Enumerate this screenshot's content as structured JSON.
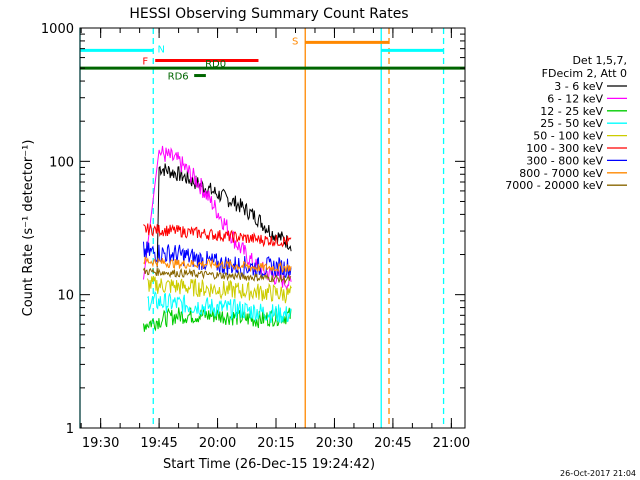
{
  "chart_data": {
    "type": "line",
    "title": "HESSI Observing Summary Count Rates",
    "ylabel": "Count Rate (s⁻¹ detector⁻¹)",
    "xlabel": "Start Time (26-Dec-15 19:24:42)",
    "yscale": "log",
    "ylim": [
      1,
      1000
    ],
    "xlim": [
      "19:24:42",
      "21:03:30"
    ],
    "y_ticks": [
      "1",
      "10",
      "100",
      "1000"
    ],
    "x_ticks": [
      "19:30",
      "19:45",
      "20:00",
      "20:15",
      "20:30",
      "20:45",
      "21:00"
    ],
    "x_tick_minutes": [
      5.3,
      20.3,
      35.3,
      50.3,
      65.3,
      80.3,
      95.3
    ],
    "legend_title": [
      "Det 1,5,7,",
      "FDecim 2, Att 0"
    ],
    "legend_position": "right",
    "footer": "26-Oct-2017 21:04",
    "series": [
      {
        "name": "3 - 6 keV",
        "color": "#000000",
        "x": [
          "19:45:00",
          "19:50:00",
          "19:55:00",
          "20:00:00",
          "20:05:00",
          "20:10:00",
          "20:14:00",
          "20:19:00"
        ],
        "values": [
          90,
          80,
          68,
          57,
          48,
          38,
          29,
          24
        ],
        "start_value": 16,
        "start_time": "19:44:30"
      },
      {
        "name": "6 - 12 keV",
        "color": "#ff00ff",
        "x": [
          "19:45:00",
          "19:50:00",
          "19:55:00",
          "20:00:00",
          "20:05:00",
          "20:10:00",
          "20:14:00",
          "20:19:00"
        ],
        "values": [
          118,
          100,
          70,
          42,
          24,
          16,
          14,
          12
        ],
        "start_value": 13,
        "start_time": "19:41:00"
      },
      {
        "name": "12 - 25 keV",
        "color": "#00cc00",
        "x": [
          "19:41:00",
          "19:50:00",
          "20:00:00",
          "20:10:00",
          "20:19:00"
        ],
        "values": [
          6,
          7,
          7,
          6.5,
          7
        ]
      },
      {
        "name": "25 - 50 keV",
        "color": "#00ffff",
        "x": [
          "19:42:00",
          "19:50:00",
          "20:00:00",
          "20:10:00",
          "20:19:00"
        ],
        "values": [
          9,
          8.5,
          8,
          7.5,
          7
        ]
      },
      {
        "name": "50 - 100 keV",
        "color": "#cccc00",
        "x": [
          "19:42:00",
          "19:50:00",
          "20:00:00",
          "20:10:00",
          "20:19:00"
        ],
        "values": [
          12,
          11.5,
          11,
          10.5,
          10
        ]
      },
      {
        "name": "100 - 300 keV",
        "color": "#ff0000",
        "x": [
          "19:41:00",
          "19:50:00",
          "20:00:00",
          "20:10:00",
          "20:19:00"
        ],
        "values": [
          31,
          30,
          28,
          26,
          25
        ]
      },
      {
        "name": "300 - 800 keV",
        "color": "#0000ff",
        "x": [
          "19:41:00",
          "19:50:00",
          "20:00:00",
          "20:10:00",
          "20:19:00"
        ],
        "values": [
          21,
          20,
          17,
          16,
          16
        ]
      },
      {
        "name": "800 - 7000 keV",
        "color": "#ff8800",
        "x": [
          "19:41:00",
          "19:50:00",
          "20:00:00",
          "20:10:00",
          "20:19:00"
        ],
        "values": [
          18,
          17,
          17,
          16,
          16
        ]
      },
      {
        "name": "7000 - 20000 keV",
        "color": "#886600",
        "x": [
          "19:41:00",
          "19:50:00",
          "20:00:00",
          "20:10:00",
          "20:19:00"
        ],
        "values": [
          15,
          14.5,
          14,
          13.5,
          13
        ]
      }
    ],
    "flag_bars": [
      {
        "label": "N",
        "color": "#00ffff",
        "start": "19:24:42",
        "end": "19:43:30",
        "level": 680
      },
      {
        "label": "",
        "color": "#00ffff",
        "start": "20:42:00",
        "end": "20:58:00",
        "level": 680
      },
      {
        "label": "F",
        "color": "#ff0000",
        "start": "19:44:00",
        "end": "20:10:30",
        "level": 570
      },
      {
        "label": "S",
        "color": "#ff8800",
        "start": "20:22:30",
        "end": "20:44:00",
        "level": 780
      },
      {
        "label": "RD0",
        "color": "#006600",
        "start": "19:24:42",
        "end": "21:03:30",
        "level": 500
      },
      {
        "label": "RD6",
        "color": "#006600",
        "start": "19:54:00",
        "end": "19:57:00",
        "level": 440
      }
    ],
    "vertical_lines": [
      {
        "time": "19:24:42",
        "color": "#00ffff",
        "style": "solid"
      },
      {
        "time": "19:43:30",
        "color": "#00ffff",
        "style": "dashed"
      },
      {
        "time": "20:22:30",
        "color": "#ff8800",
        "style": "solid"
      },
      {
        "time": "20:42:00",
        "color": "#00ffff",
        "style": "solid"
      },
      {
        "time": "20:44:00",
        "color": "#ff8800",
        "style": "dashed"
      },
      {
        "time": "20:58:00",
        "color": "#00ffff",
        "style": "dashed"
      }
    ]
  }
}
